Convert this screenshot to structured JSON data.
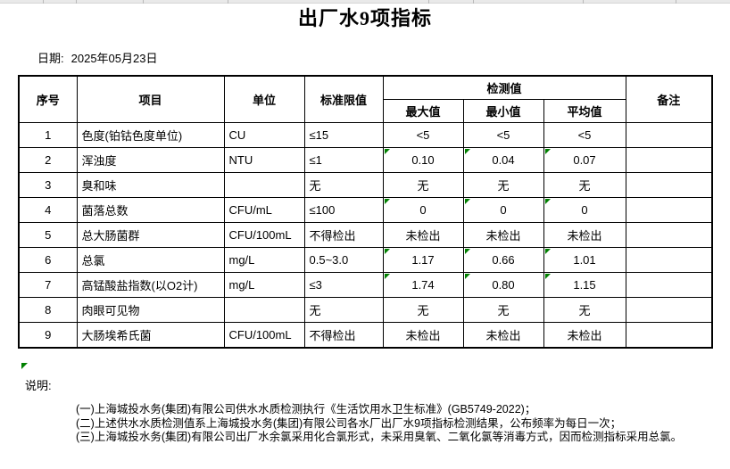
{
  "title": "出厂水9项指标",
  "date": {
    "label": "日期:",
    "value": "2025年05月23日"
  },
  "table": {
    "headers": {
      "seq": "序号",
      "item": "项目",
      "unit": "单位",
      "limit": "标准限值",
      "detection_group": "检测值",
      "max": "最大值",
      "min": "最小值",
      "avg": "平均值",
      "remark": "备注"
    },
    "rows": [
      {
        "seq": "1",
        "item": "色度(铂钴色度单位)",
        "unit": "CU",
        "limit": "≤15",
        "max": "<5",
        "min": "<5",
        "avg": "<5",
        "remark": "",
        "error_indicator": false
      },
      {
        "seq": "2",
        "item": "浑浊度",
        "unit": "NTU",
        "limit": "≤1",
        "max": "0.10",
        "min": "0.04",
        "avg": "0.07",
        "remark": "",
        "error_indicator": true
      },
      {
        "seq": "3",
        "item": "臭和味",
        "unit": "",
        "limit": "无",
        "max": "无",
        "min": "无",
        "avg": "无",
        "remark": "",
        "error_indicator": false
      },
      {
        "seq": "4",
        "item": "菌落总数",
        "unit": "CFU/mL",
        "limit": "≤100",
        "max": "0",
        "min": "0",
        "avg": "0",
        "remark": "",
        "error_indicator": true
      },
      {
        "seq": "5",
        "item": "总大肠菌群",
        "unit": "CFU/100mL",
        "limit": "不得检出",
        "max": "未检出",
        "min": "未检出",
        "avg": "未检出",
        "remark": "",
        "error_indicator": false
      },
      {
        "seq": "6",
        "item": "总氯",
        "unit": "mg/L",
        "limit": "0.5~3.0",
        "max": "1.17",
        "min": "0.66",
        "avg": "1.01",
        "remark": "",
        "error_indicator": true
      },
      {
        "seq": "7",
        "item": "高锰酸盐指数(以O2计)",
        "unit": "mg/L",
        "limit": "≤3",
        "max": "1.74",
        "min": "0.80",
        "avg": "1.15",
        "remark": "",
        "error_indicator": true
      },
      {
        "seq": "8",
        "item": "肉眼可见物",
        "unit": "",
        "limit": "无",
        "max": "无",
        "min": "无",
        "avg": "无",
        "remark": "",
        "error_indicator": false
      },
      {
        "seq": "9",
        "item": "大肠埃希氏菌",
        "unit": "CFU/100mL",
        "limit": "不得检出",
        "max": "未检出",
        "min": "未检出",
        "avg": "未检出",
        "remark": "",
        "error_indicator": false
      }
    ]
  },
  "notes": {
    "label": "说明:",
    "items": [
      "(一)上海城投水务(集团)有限公司供水水质检测执行《生活饮用水卫生标准》(GB5749-2022)；",
      "(二)上述供水水质检测值系上海城投水务(集团)有限公司各水厂出厂水9项指标检测结果，公布频率为每日一次；",
      "(三)上海城投水务(集团)有限公司出厂水余氯采用化合氯形式，未采用臭氧、二氧化氯等消毒方式，因而检测指标采用总氯。"
    ]
  },
  "colors": {
    "error_indicator_green": "#008000"
  }
}
